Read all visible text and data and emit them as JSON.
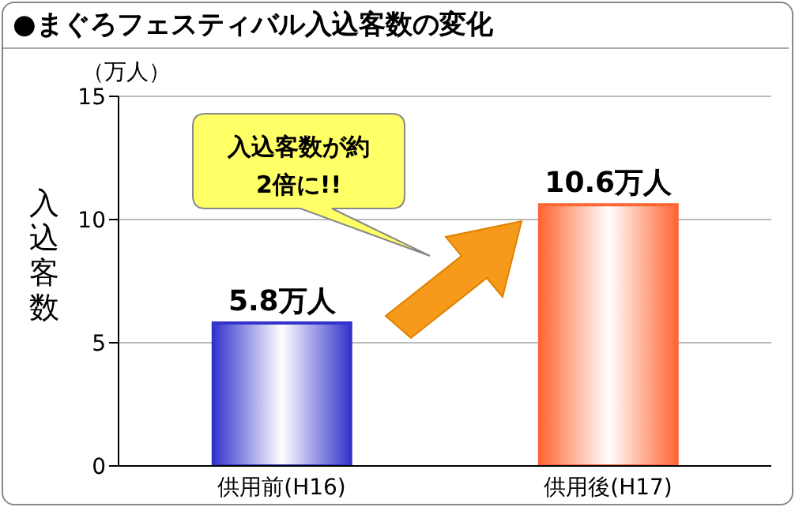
{
  "chart_data": {
    "type": "bar",
    "title": "●まぐろフェスティバル入込客数の変化",
    "ylabel": "入込客数",
    "categories": [
      "供用前(H16)",
      "供用後(H17)"
    ],
    "values": [
      5.8,
      10.6
    ],
    "colors": [
      "#3333cc",
      "#ff6633"
    ],
    "value_labels": [
      "5.8万人",
      "10.6万人"
    ],
    "ylim": [
      0,
      15
    ],
    "yticks": [
      0,
      5,
      10,
      15
    ],
    "grid": "y",
    "annotations": [
      "（万人）",
      "入込客数が約2倍に!!"
    ]
  }
}
